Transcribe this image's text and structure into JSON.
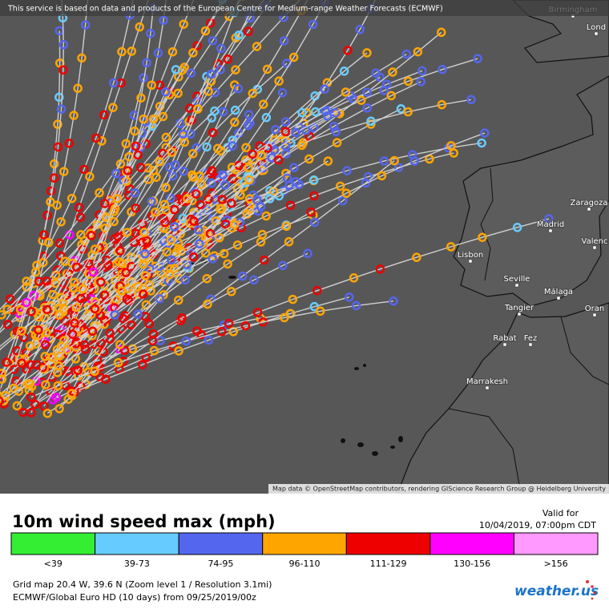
{
  "header": {
    "attribution": "This service is based on data and products of the European Centre for Medium-range Weather Forecasts (ECMWF)"
  },
  "map": {
    "cities": [
      {
        "label": "Birmingham"
      },
      {
        "label": "Lond"
      },
      {
        "label": "Zaragoza"
      },
      {
        "label": "Madrid"
      },
      {
        "label": "Valenc"
      },
      {
        "label": "Lisbon"
      },
      {
        "label": "Seville"
      },
      {
        "label": "Málaga"
      },
      {
        "label": "Tangier"
      },
      {
        "label": "Oran"
      },
      {
        "label": "Rabat"
      },
      {
        "label": "Fez"
      },
      {
        "label": "Marrakesh"
      }
    ],
    "credit": "Map data © OpenStreetMap contributors, rendering GIScience Research Group @ Heidelberg University"
  },
  "panel": {
    "title": "10m wind speed max (mph)",
    "valid_label": "Valid for",
    "valid_time": "10/04/2019, 07:00pm CDT",
    "legend": [
      {
        "label": "<39",
        "color": "#33ee33"
      },
      {
        "label": "39-73",
        "color": "#66ccff"
      },
      {
        "label": "74-95",
        "color": "#5566ee"
      },
      {
        "label": "96-110",
        "color": "#ffa500"
      },
      {
        "label": "111-129",
        "color": "#ee0000"
      },
      {
        "label": "130-156",
        "color": "#ff00ff"
      },
      {
        "label": ">156",
        "color": "#ff99ff"
      }
    ],
    "grid_info": "Grid map 20.4 W, 39.6 N (Zoom level 1 / Resolution 3.1mi)",
    "model_info": "ECMWF/Global Euro HD (10 days) from 09/25/2019/00z",
    "logo": "weather.us"
  }
}
